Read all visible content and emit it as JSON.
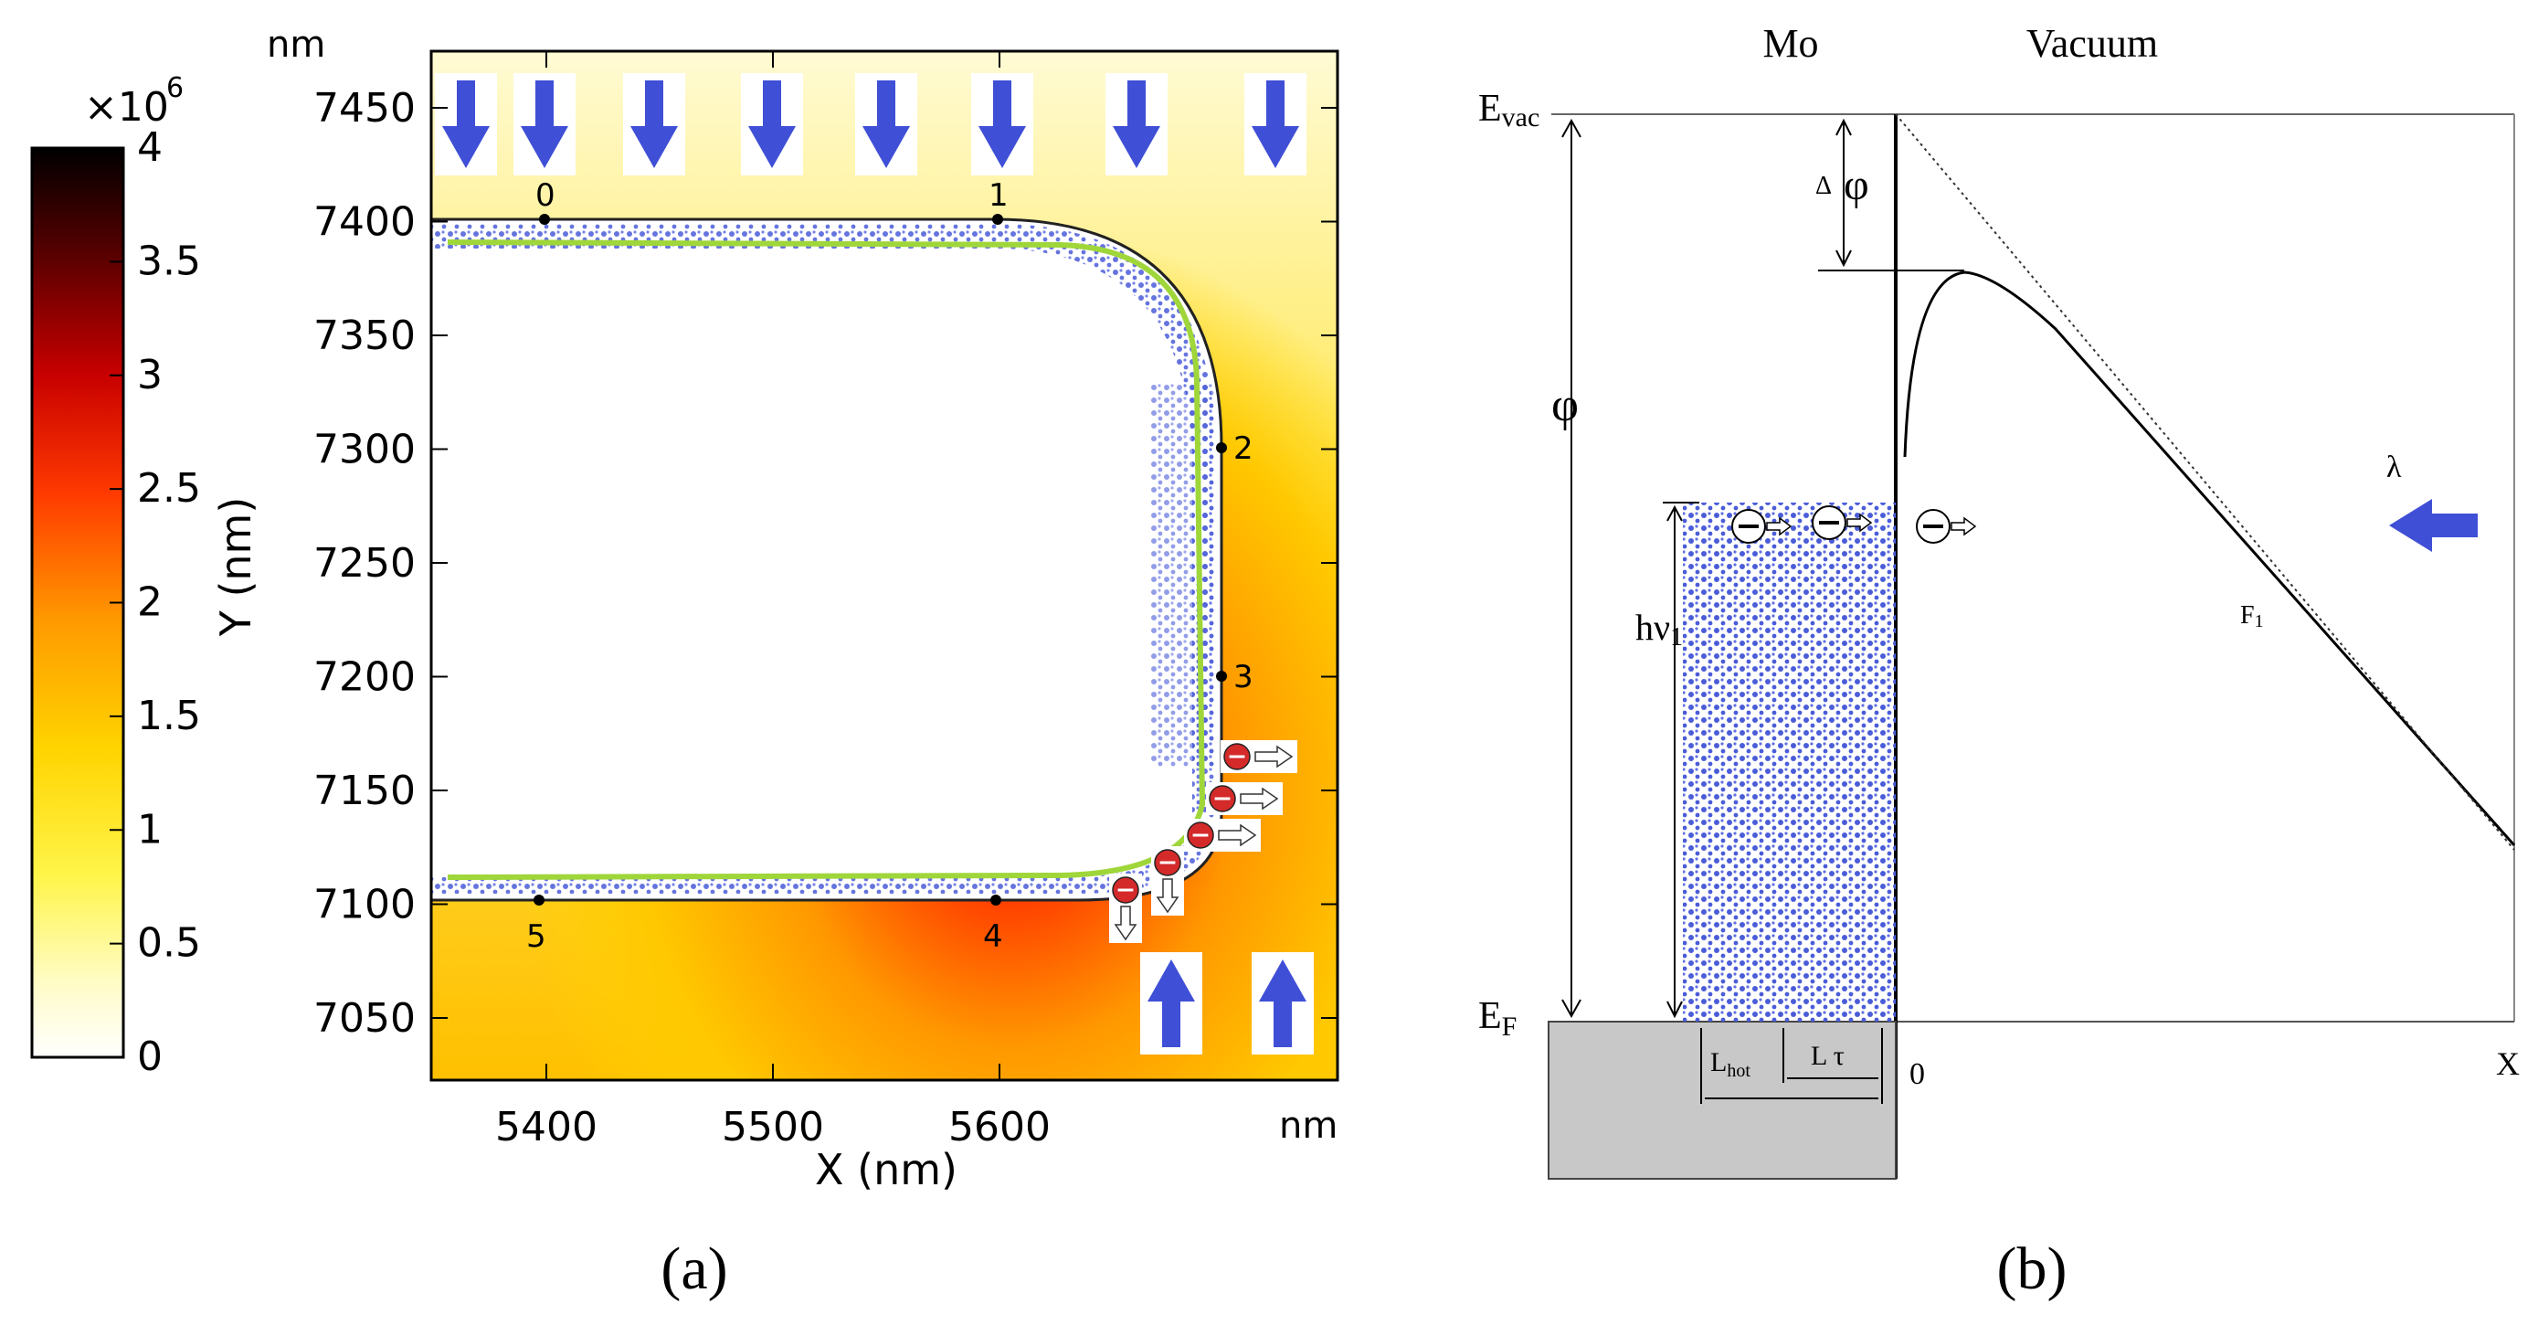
{
  "panel_a": {
    "caption": "(a)",
    "colorbar": {
      "multiplier": "×10",
      "exponent": "6",
      "ticks": [
        "4",
        "3.5",
        "3",
        "2.5",
        "2",
        "1.5",
        "1",
        "0.5",
        "0"
      ]
    },
    "corner_unit_top": "nm",
    "corner_unit_right": "nm",
    "x_axis_label": "X (nm)",
    "y_axis_label": "Y (nm)",
    "x_ticks": [
      "5400",
      "5500",
      "5600"
    ],
    "y_ticks": [
      "7450",
      "7400",
      "7350",
      "7300",
      "7250",
      "7200",
      "7150",
      "7100",
      "7050"
    ],
    "point_labels": [
      "0",
      "1",
      "2",
      "3",
      "4",
      "5"
    ],
    "colors": {
      "field_low": "#fffbd0",
      "field_mid": "#ffd400",
      "field_high": "#ff1a00",
      "arrow": "#3f4fd6",
      "particles": "#4a5cd8",
      "contour": "#9fd63a",
      "electron": "#d42a2a"
    }
  },
  "panel_b": {
    "caption": "(b)",
    "region_left": "Mo",
    "region_right": "Vacuum",
    "e_vac_main": "E",
    "e_vac_sub": "vac",
    "e_f_main": "E",
    "e_f_sub": "F",
    "phi": "φ",
    "delta": "Δ",
    "delta_phi": "φ",
    "h_nu_main": "hν",
    "h_nu_sub": "1",
    "lambda": "λ",
    "f_main": "F",
    "f_sub": "1",
    "l_hot_main": "L",
    "l_hot_sub": "hot",
    "l_tau": "L τ",
    "origin": "0",
    "x_label": "X",
    "colors": {
      "metal": "#c8c8c8",
      "particles": "#4a5cd8",
      "arrow": "#3f4fd6"
    }
  }
}
